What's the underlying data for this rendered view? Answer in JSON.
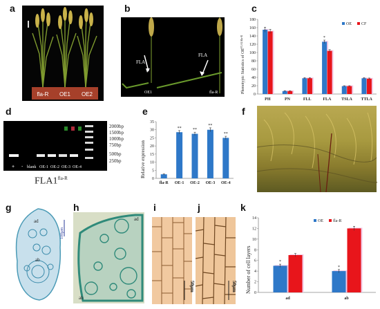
{
  "panel_letters": {
    "a": "a",
    "b": "b",
    "c": "c",
    "d": "d",
    "e": "e",
    "f": "f",
    "g": "g",
    "h": "h",
    "i": "i",
    "j": "j",
    "k": "k"
  },
  "panel_a": {
    "labels": [
      "fla-R",
      "OE1",
      "OE2"
    ]
  },
  "panel_b": {
    "fla_left": "FLA",
    "fla_right": "FLA",
    "sample_left": "OE1",
    "sample_right": "fla-R"
  },
  "panel_d": {
    "ladder": [
      "2000bp",
      "1500bp",
      "1000bp",
      "750bp",
      "500bp",
      "250bp"
    ],
    "lanes": [
      "+",
      "-",
      "blank",
      "OE-1",
      "OE-2",
      "OE-3",
      "OE-4"
    ],
    "caption_main": "FLA1",
    "caption_sup": "fla-R"
  },
  "panel_g": {
    "ad": "ad",
    "ab": "ab",
    "scale": "100μm"
  },
  "panel_h": {
    "ad": "ad",
    "ab": "ab"
  },
  "panel_i": {
    "scale": "50μm"
  },
  "panel_j": {
    "scale": "50μm"
  },
  "colors": {
    "blue": "#3a7bd5",
    "red": "#d9302c",
    "bar_blue": "#2e78c8",
    "bar_red": "#e8151b",
    "shadow": "#f2c9e6"
  },
  "chart_data": [
    {
      "id": "c",
      "type": "bar",
      "ylabel": "Phenotypic Statistics of OE",
      "ylabel_sup": "FLA1/fla-R",
      "categories": [
        "PH",
        "PN",
        "FLL",
        "FLA",
        "TSLA",
        "TTLA"
      ],
      "series": [
        {
          "name": "OE",
          "values": [
            155,
            7,
            38,
            126,
            19,
            38
          ],
          "errors": [
            6,
            1,
            1.5,
            4,
            1,
            1.5
          ]
        },
        {
          "name": "CF",
          "values": [
            151,
            7,
            38,
            104,
            19,
            37
          ],
          "errors": [
            5,
            1,
            1.5,
            3,
            1,
            1.5
          ]
        }
      ],
      "ylim": [
        0,
        180
      ],
      "yticks": [
        0,
        20,
        40,
        60,
        80,
        100,
        120,
        140,
        160,
        180
      ],
      "annotations": [
        {
          "category": "FLA",
          "text": "*"
        }
      ],
      "legend": "top-right"
    },
    {
      "id": "e",
      "type": "bar",
      "ylabel": "Relative expression",
      "categories": [
        "fla-R",
        "OE-1",
        "OE-2",
        "OE-3",
        "OE-4"
      ],
      "series": [
        {
          "name": "",
          "values": [
            2.5,
            28.5,
            27.5,
            30,
            25
          ],
          "errors": [
            0.3,
            1,
            1,
            1.2,
            1
          ]
        }
      ],
      "ylim": [
        0,
        35
      ],
      "yticks": [
        0,
        5,
        10,
        15,
        20,
        25,
        30,
        35
      ],
      "annotations": [
        "",
        "**",
        "**",
        "**",
        "**"
      ]
    },
    {
      "id": "k",
      "type": "bar",
      "ylabel": "Number of cell layers",
      "categories": [
        "ad",
        "ab"
      ],
      "series": [
        {
          "name": "OE",
          "values": [
            5,
            4
          ],
          "errors": [
            0.3,
            0.3
          ]
        },
        {
          "name": "fla-R",
          "values": [
            7,
            12
          ],
          "errors": [
            0.3,
            0.4
          ]
        }
      ],
      "ylim": [
        0,
        14
      ],
      "yticks": [
        0,
        2,
        4,
        6,
        8,
        10,
        12,
        14
      ],
      "annotations": [
        "*",
        "*"
      ],
      "legend": "top-center"
    }
  ]
}
